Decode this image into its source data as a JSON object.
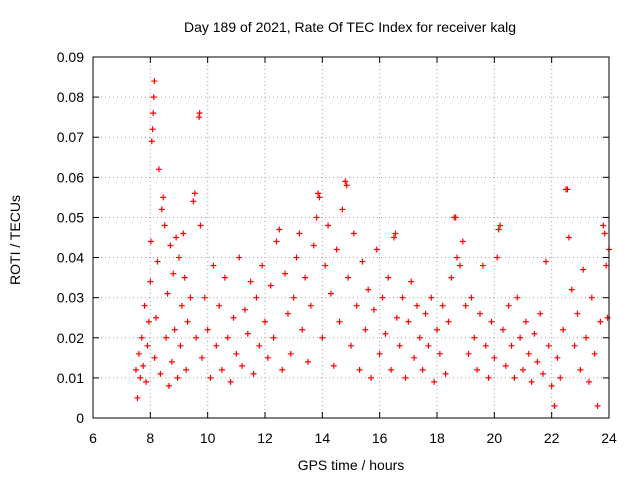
{
  "chart_data": {
    "type": "scatter",
    "title": "Day 189 of 2021, Rate Of TEC Index for receiver kalg",
    "xlabel": "GPS time / hours",
    "ylabel": "ROTI / TECUs",
    "xlim": [
      6,
      24
    ],
    "ylim": [
      0,
      0.09
    ],
    "x_ticks": [
      6,
      8,
      10,
      12,
      14,
      16,
      18,
      20,
      22,
      24
    ],
    "x_tick_labels": [
      "6",
      "8",
      "10",
      "12",
      "14",
      "16",
      "18",
      "20",
      "22",
      "24"
    ],
    "y_ticks": [
      0,
      0.01,
      0.02,
      0.03,
      0.04,
      0.05,
      0.06,
      0.07,
      0.08,
      0.09
    ],
    "y_tick_labels": [
      "0",
      "0.01",
      "0.02",
      "0.03",
      "0.04",
      "0.05",
      "0.06",
      "0.07",
      "0.08",
      "0.09"
    ],
    "grid": true,
    "marker": "+",
    "color": "#ff0000",
    "series": [
      {
        "name": "ROTI",
        "points": [
          [
            7.5,
            0.012
          ],
          [
            7.55,
            0.005
          ],
          [
            7.6,
            0.016
          ],
          [
            7.65,
            0.01
          ],
          [
            7.7,
            0.02
          ],
          [
            7.75,
            0.013
          ],
          [
            7.8,
            0.028
          ],
          [
            7.85,
            0.009
          ],
          [
            7.9,
            0.018
          ],
          [
            7.95,
            0.024
          ],
          [
            8.0,
            0.034
          ],
          [
            8.02,
            0.044
          ],
          [
            8.05,
            0.069
          ],
          [
            8.08,
            0.072
          ],
          [
            8.1,
            0.076
          ],
          [
            8.12,
            0.08
          ],
          [
            8.14,
            0.084
          ],
          [
            8.15,
            0.015
          ],
          [
            8.2,
            0.025
          ],
          [
            8.25,
            0.039
          ],
          [
            8.3,
            0.062
          ],
          [
            8.35,
            0.011
          ],
          [
            8.4,
            0.052
          ],
          [
            8.45,
            0.055
          ],
          [
            8.5,
            0.048
          ],
          [
            8.55,
            0.02
          ],
          [
            8.6,
            0.031
          ],
          [
            8.65,
            0.008
          ],
          [
            8.7,
            0.043
          ],
          [
            8.75,
            0.014
          ],
          [
            8.8,
            0.036
          ],
          [
            8.85,
            0.022
          ],
          [
            8.9,
            0.045
          ],
          [
            8.95,
            0.01
          ],
          [
            9.0,
            0.04
          ],
          [
            9.05,
            0.018
          ],
          [
            9.1,
            0.028
          ],
          [
            9.15,
            0.046
          ],
          [
            9.2,
            0.035
          ],
          [
            9.25,
            0.012
          ],
          [
            9.3,
            0.024
          ],
          [
            9.4,
            0.03
          ],
          [
            9.5,
            0.054
          ],
          [
            9.55,
            0.056
          ],
          [
            9.6,
            0.02
          ],
          [
            9.7,
            0.075
          ],
          [
            9.72,
            0.076
          ],
          [
            9.75,
            0.048
          ],
          [
            9.8,
            0.015
          ],
          [
            9.9,
            0.03
          ],
          [
            10.0,
            0.022
          ],
          [
            10.1,
            0.01
          ],
          [
            10.2,
            0.038
          ],
          [
            10.3,
            0.018
          ],
          [
            10.4,
            0.028
          ],
          [
            10.5,
            0.012
          ],
          [
            10.6,
            0.035
          ],
          [
            10.7,
            0.02
          ],
          [
            10.8,
            0.009
          ],
          [
            10.9,
            0.025
          ],
          [
            11.0,
            0.016
          ],
          [
            11.1,
            0.04
          ],
          [
            11.2,
            0.013
          ],
          [
            11.3,
            0.027
          ],
          [
            11.4,
            0.021
          ],
          [
            11.5,
            0.034
          ],
          [
            11.6,
            0.011
          ],
          [
            11.7,
            0.03
          ],
          [
            11.8,
            0.018
          ],
          [
            11.9,
            0.038
          ],
          [
            12.0,
            0.024
          ],
          [
            12.1,
            0.015
          ],
          [
            12.2,
            0.033
          ],
          [
            12.3,
            0.02
          ],
          [
            12.4,
            0.044
          ],
          [
            12.5,
            0.047
          ],
          [
            12.6,
            0.012
          ],
          [
            12.7,
            0.036
          ],
          [
            12.8,
            0.026
          ],
          [
            12.9,
            0.016
          ],
          [
            13.0,
            0.03
          ],
          [
            13.1,
            0.04
          ],
          [
            13.2,
            0.046
          ],
          [
            13.3,
            0.022
          ],
          [
            13.4,
            0.035
          ],
          [
            13.5,
            0.014
          ],
          [
            13.6,
            0.028
          ],
          [
            13.7,
            0.043
          ],
          [
            13.8,
            0.05
          ],
          [
            13.85,
            0.056
          ],
          [
            13.9,
            0.055
          ],
          [
            14.0,
            0.02
          ],
          [
            14.1,
            0.038
          ],
          [
            14.2,
            0.048
          ],
          [
            14.3,
            0.031
          ],
          [
            14.4,
            0.013
          ],
          [
            14.5,
            0.042
          ],
          [
            14.6,
            0.024
          ],
          [
            14.7,
            0.052
          ],
          [
            14.8,
            0.059
          ],
          [
            14.85,
            0.058
          ],
          [
            14.9,
            0.035
          ],
          [
            15.0,
            0.018
          ],
          [
            15.1,
            0.046
          ],
          [
            15.2,
            0.028
          ],
          [
            15.3,
            0.012
          ],
          [
            15.4,
            0.039
          ],
          [
            15.5,
            0.022
          ],
          [
            15.6,
            0.032
          ],
          [
            15.7,
            0.01
          ],
          [
            15.8,
            0.027
          ],
          [
            15.9,
            0.042
          ],
          [
            16.0,
            0.016
          ],
          [
            16.1,
            0.03
          ],
          [
            16.2,
            0.021
          ],
          [
            16.3,
            0.035
          ],
          [
            16.4,
            0.012
          ],
          [
            16.5,
            0.045
          ],
          [
            16.55,
            0.046
          ],
          [
            16.6,
            0.025
          ],
          [
            16.7,
            0.018
          ],
          [
            16.8,
            0.03
          ],
          [
            16.9,
            0.01
          ],
          [
            17.0,
            0.024
          ],
          [
            17.1,
            0.034
          ],
          [
            17.2,
            0.015
          ],
          [
            17.3,
            0.028
          ],
          [
            17.4,
            0.02
          ],
          [
            17.5,
            0.012
          ],
          [
            17.6,
            0.026
          ],
          [
            17.7,
            0.018
          ],
          [
            17.8,
            0.03
          ],
          [
            17.9,
            0.009
          ],
          [
            18.0,
            0.022
          ],
          [
            18.1,
            0.016
          ],
          [
            18.2,
            0.028
          ],
          [
            18.3,
            0.011
          ],
          [
            18.4,
            0.024
          ],
          [
            18.5,
            0.035
          ],
          [
            18.6,
            0.05
          ],
          [
            18.65,
            0.05
          ],
          [
            18.7,
            0.04
          ],
          [
            18.8,
            0.038
          ],
          [
            18.9,
            0.044
          ],
          [
            19.0,
            0.028
          ],
          [
            19.1,
            0.016
          ],
          [
            19.2,
            0.03
          ],
          [
            19.3,
            0.02
          ],
          [
            19.4,
            0.012
          ],
          [
            19.5,
            0.026
          ],
          [
            19.6,
            0.038
          ],
          [
            19.7,
            0.018
          ],
          [
            19.8,
            0.01
          ],
          [
            19.9,
            0.024
          ],
          [
            20.0,
            0.015
          ],
          [
            20.1,
            0.04
          ],
          [
            20.15,
            0.047
          ],
          [
            20.2,
            0.048
          ],
          [
            20.3,
            0.022
          ],
          [
            20.4,
            0.013
          ],
          [
            20.5,
            0.028
          ],
          [
            20.6,
            0.018
          ],
          [
            20.7,
            0.01
          ],
          [
            20.8,
            0.03
          ],
          [
            20.9,
            0.02
          ],
          [
            21.0,
            0.012
          ],
          [
            21.1,
            0.024
          ],
          [
            21.2,
            0.016
          ],
          [
            21.3,
            0.009
          ],
          [
            21.4,
            0.021
          ],
          [
            21.5,
            0.014
          ],
          [
            21.6,
            0.026
          ],
          [
            21.7,
            0.011
          ],
          [
            21.8,
            0.039
          ],
          [
            21.9,
            0.018
          ],
          [
            22.0,
            0.008
          ],
          [
            22.1,
            0.003
          ],
          [
            22.2,
            0.015
          ],
          [
            22.3,
            0.01
          ],
          [
            22.4,
            0.022
          ],
          [
            22.5,
            0.057
          ],
          [
            22.55,
            0.057
          ],
          [
            22.6,
            0.045
          ],
          [
            22.7,
            0.032
          ],
          [
            22.8,
            0.018
          ],
          [
            22.9,
            0.026
          ],
          [
            23.0,
            0.012
          ],
          [
            23.1,
            0.037
          ],
          [
            23.2,
            0.02
          ],
          [
            23.3,
            0.009
          ],
          [
            23.4,
            0.03
          ],
          [
            23.5,
            0.016
          ],
          [
            23.6,
            0.003
          ],
          [
            23.7,
            0.024
          ],
          [
            23.8,
            0.048
          ],
          [
            23.85,
            0.046
          ],
          [
            23.9,
            0.038
          ],
          [
            23.95,
            0.025
          ],
          [
            24.0,
            0.042
          ]
        ]
      }
    ]
  }
}
